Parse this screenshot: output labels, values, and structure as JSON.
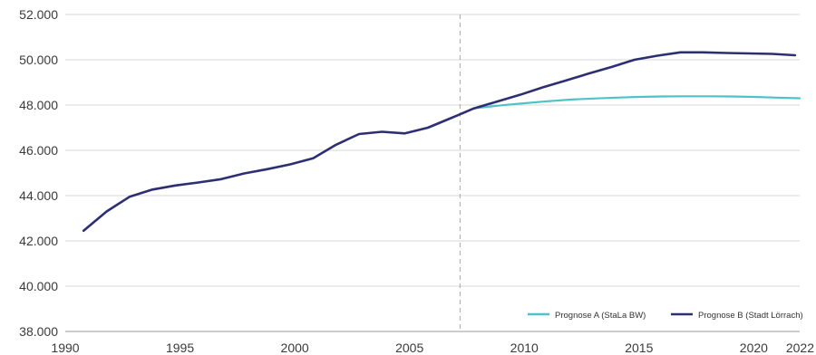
{
  "chart_data": {
    "type": "line",
    "title": "",
    "xlabel": "",
    "ylabel": "",
    "xlim": [
      1990,
      2022
    ],
    "ylim": [
      38000,
      52000
    ],
    "x_ticks": [
      {
        "value": 1990,
        "label": "1990"
      },
      {
        "value": 1995,
        "label": "1995"
      },
      {
        "value": 2000,
        "label": "2000"
      },
      {
        "value": 2005,
        "label": "2005"
      },
      {
        "value": 2010,
        "label": "2010"
      },
      {
        "value": 2015,
        "label": "2015"
      },
      {
        "value": 2020,
        "label": "2020"
      },
      {
        "value": 2022,
        "label": "2022"
      }
    ],
    "y_ticks": [
      {
        "value": 38000,
        "label": "38.000"
      },
      {
        "value": 40000,
        "label": "40.000"
      },
      {
        "value": 42000,
        "label": "42.000"
      },
      {
        "value": 44000,
        "label": "44.000"
      },
      {
        "value": 46000,
        "label": "46.000"
      },
      {
        "value": 48000,
        "label": "48.000"
      },
      {
        "value": 50000,
        "label": "50.000"
      },
      {
        "value": 52000,
        "label": "52.000"
      }
    ],
    "grid": "horizontal",
    "reference_line": {
      "x": 2007.2,
      "style": "dashed"
    },
    "legend_position": "bottom-right",
    "series": [
      {
        "name": "Prognose A (StaLa BW)",
        "color": "#4dc3c8",
        "points": [
          [
            2007.8,
            47850
          ],
          [
            2009,
            47990
          ],
          [
            2010,
            48080
          ],
          [
            2011,
            48170
          ],
          [
            2012,
            48240
          ],
          [
            2013,
            48290
          ],
          [
            2014,
            48330
          ],
          [
            2015,
            48360
          ],
          [
            2016,
            48380
          ],
          [
            2017,
            48390
          ],
          [
            2018,
            48390
          ],
          [
            2019,
            48380
          ],
          [
            2020,
            48360
          ],
          [
            2021,
            48330
          ],
          [
            2022,
            48300
          ]
        ]
      },
      {
        "name": "Prognose B (Stadt Lörrach)",
        "color": "#2e2f72",
        "points": [
          [
            1990.8,
            42450
          ],
          [
            1991.8,
            43300
          ],
          [
            1992.8,
            43950
          ],
          [
            1993.8,
            44270
          ],
          [
            1994.8,
            44450
          ],
          [
            1995.8,
            44580
          ],
          [
            1996.8,
            44730
          ],
          [
            1997.8,
            44980
          ],
          [
            1998.8,
            45170
          ],
          [
            1999.8,
            45380
          ],
          [
            2000.8,
            45650
          ],
          [
            2001.8,
            46250
          ],
          [
            2002.8,
            46720
          ],
          [
            2003.8,
            46820
          ],
          [
            2004.8,
            46750
          ],
          [
            2005.8,
            47000
          ],
          [
            2006.8,
            47420
          ],
          [
            2007.8,
            47850
          ],
          [
            2008.8,
            48150
          ],
          [
            2009.8,
            48450
          ],
          [
            2010.8,
            48780
          ],
          [
            2011.8,
            49080
          ],
          [
            2012.8,
            49390
          ],
          [
            2013.8,
            49680
          ],
          [
            2014.8,
            50000
          ],
          [
            2015.8,
            50180
          ],
          [
            2016.8,
            50330
          ],
          [
            2017.8,
            50330
          ],
          [
            2018.8,
            50300
          ],
          [
            2019.8,
            50280
          ],
          [
            2020.8,
            50260
          ],
          [
            2021.8,
            50200
          ]
        ]
      }
    ]
  }
}
